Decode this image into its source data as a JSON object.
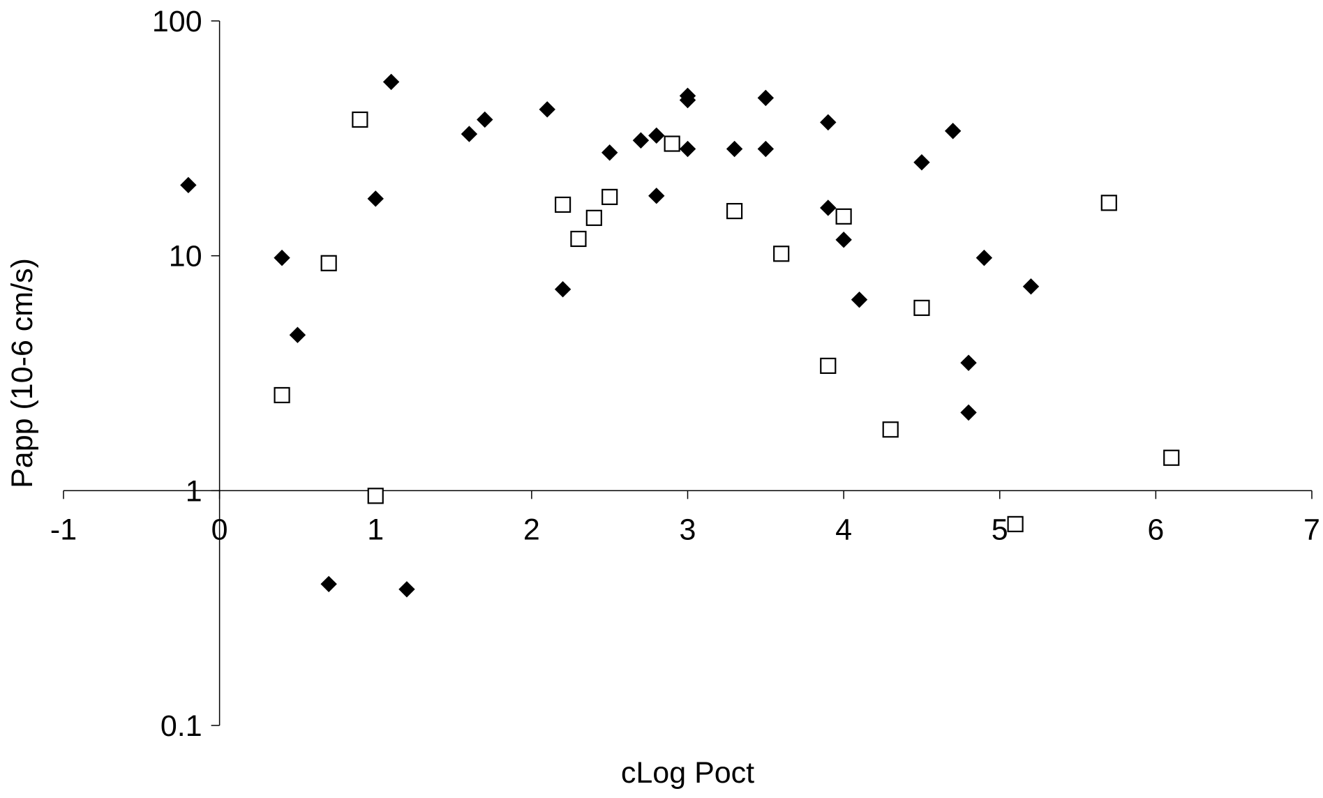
{
  "chart_data": {
    "type": "scatter",
    "title": "",
    "xlabel": "cLog Poct",
    "ylabel": "Papp (10-6 cm/s)",
    "xlim": [
      -1,
      7
    ],
    "ylim": [
      0.1,
      100
    ],
    "yscale": "log",
    "x_ticks": [
      "-1",
      "0",
      "1",
      "2",
      "3",
      "4",
      "5",
      "6",
      "7"
    ],
    "y_ticks": [
      "0.1",
      "1",
      "10",
      "100"
    ],
    "grid": false,
    "legend": "none",
    "series": [
      {
        "marker": "filled-diamond",
        "color": "#000000",
        "points": [
          [
            -0.2,
            20
          ],
          [
            0.4,
            9.8
          ],
          [
            0.5,
            4.6
          ],
          [
            0.7,
            0.4
          ],
          [
            1.0,
            17.5
          ],
          [
            1.1,
            55
          ],
          [
            1.2,
            0.38
          ],
          [
            1.6,
            33
          ],
          [
            1.7,
            38
          ],
          [
            2.1,
            42
          ],
          [
            2.2,
            7.2
          ],
          [
            2.5,
            27.5
          ],
          [
            2.7,
            31
          ],
          [
            2.8,
            32.5
          ],
          [
            2.8,
            18
          ],
          [
            3.0,
            48
          ],
          [
            3.0,
            46
          ],
          [
            3.0,
            28.5
          ],
          [
            3.3,
            28.5
          ],
          [
            3.5,
            47
          ],
          [
            3.5,
            28.5
          ],
          [
            3.9,
            37
          ],
          [
            3.9,
            16
          ],
          [
            4.0,
            11.7
          ],
          [
            4.1,
            6.5
          ],
          [
            4.5,
            25
          ],
          [
            4.7,
            34
          ],
          [
            4.8,
            3.5
          ],
          [
            4.8,
            2.15
          ],
          [
            4.9,
            9.8
          ],
          [
            5.2,
            7.4
          ]
        ]
      },
      {
        "marker": "open-square",
        "color": "#000000",
        "points": [
          [
            0.4,
            2.55
          ],
          [
            0.7,
            9.3
          ],
          [
            0.9,
            38
          ],
          [
            1.0,
            0.95
          ],
          [
            2.2,
            16.5
          ],
          [
            2.3,
            11.8
          ],
          [
            2.4,
            14.5
          ],
          [
            2.5,
            17.8
          ],
          [
            2.9,
            30
          ],
          [
            3.3,
            15.5
          ],
          [
            3.6,
            10.2
          ],
          [
            3.9,
            3.4
          ],
          [
            4.0,
            14.7
          ],
          [
            4.3,
            1.82
          ],
          [
            4.5,
            6.0
          ],
          [
            5.1,
            0.72
          ],
          [
            5.7,
            16.8
          ],
          [
            6.1,
            1.38
          ]
        ]
      }
    ]
  }
}
